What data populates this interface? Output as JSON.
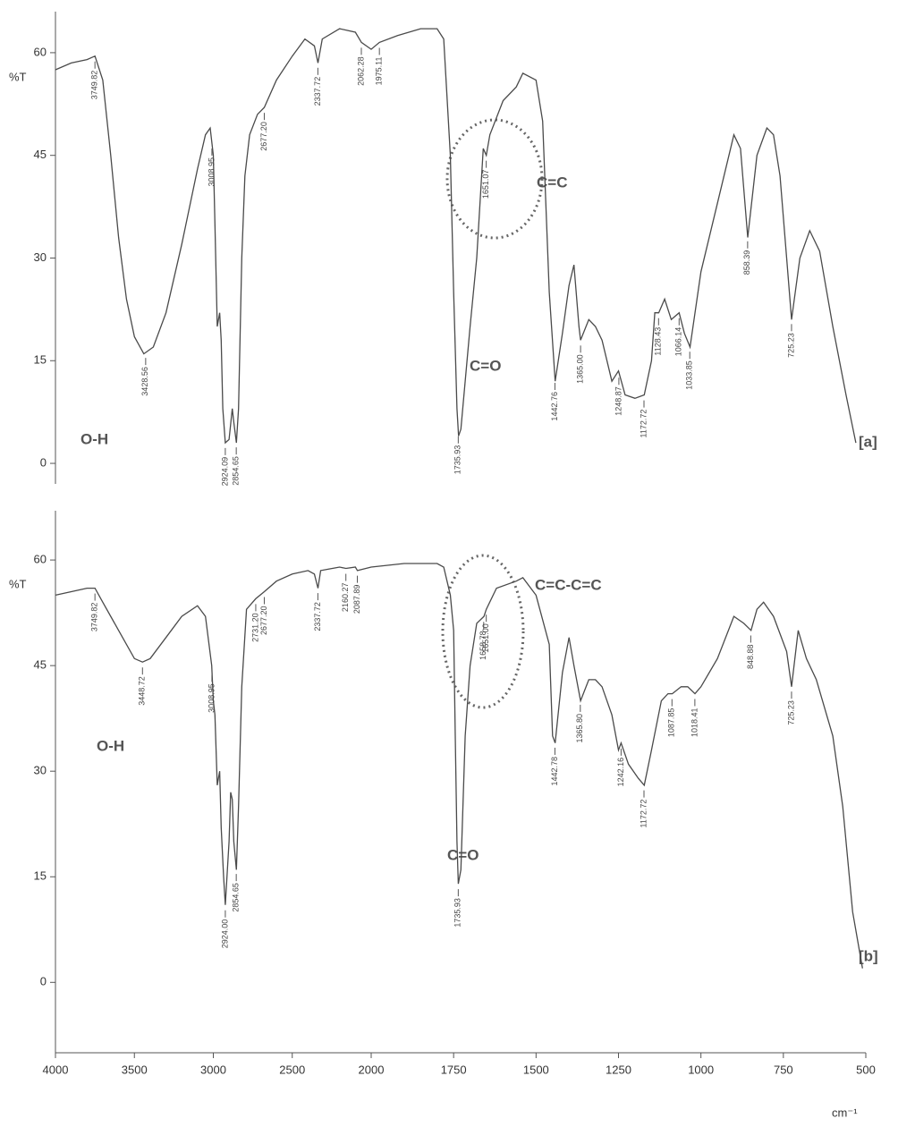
{
  "chart_data": [
    {
      "type": "line",
      "color": "#4a4a4a",
      "y_label": "%T",
      "ylim": [
        -3,
        66
      ],
      "yticks": [
        0,
        15,
        30,
        45,
        60
      ],
      "x": [
        4000,
        3900,
        3800,
        3749.82,
        3700,
        3650,
        3600,
        3550,
        3500,
        3440,
        3380,
        3300,
        3200,
        3100,
        3050,
        3020,
        3000,
        2990,
        2975,
        2960,
        2950,
        2940,
        2924,
        2900,
        2880,
        2870,
        2854,
        2840,
        2820,
        2800,
        2770,
        2720,
        2677,
        2600,
        2500,
        2420,
        2360,
        2337,
        2310,
        2200,
        2100,
        2062,
        2000,
        1975,
        1920,
        1850,
        1800,
        1780,
        1760,
        1750,
        1740,
        1735,
        1728,
        1715,
        1700,
        1680,
        1660,
        1651,
        1640,
        1600,
        1560,
        1540,
        1500,
        1480,
        1460,
        1442,
        1420,
        1400,
        1385,
        1370,
        1365,
        1340,
        1320,
        1300,
        1270,
        1250,
        1230,
        1200,
        1172,
        1150,
        1140,
        1128,
        1110,
        1090,
        1066,
        1050,
        1033,
        1000,
        950,
        900,
        880,
        858,
        830,
        800,
        780,
        760,
        740,
        725,
        700,
        670,
        640,
        600,
        560,
        530
      ],
      "values": [
        57.5,
        58.5,
        59,
        59.5,
        56,
        45,
        33,
        24,
        18.5,
        16,
        17,
        22,
        32,
        43,
        48,
        49,
        45,
        35,
        20,
        22,
        18,
        8,
        3,
        3.5,
        8,
        6,
        3,
        8,
        30,
        42,
        48,
        51,
        52,
        56,
        59.5,
        62,
        61,
        58.5,
        62,
        63.5,
        63,
        61.5,
        60.5,
        61.5,
        62.5,
        63.5,
        63.5,
        62,
        45,
        25,
        8,
        4,
        5,
        12,
        20,
        30,
        46,
        45,
        48,
        53,
        55,
        57,
        56,
        50,
        25,
        12,
        19,
        26,
        29,
        20,
        18,
        21,
        20,
        18,
        12,
        13.5,
        10,
        9.5,
        10,
        15,
        22,
        22,
        24,
        21,
        22,
        19,
        17,
        28,
        38,
        48,
        46,
        33,
        45,
        49,
        48,
        42,
        30,
        21,
        30,
        34,
        31,
        20,
        10,
        3
      ],
      "peaks": [
        {
          "x": 3749.82,
          "label": "3749.82"
        },
        {
          "x": 3428.56,
          "label": "3428.56"
        },
        {
          "x": 3008.95,
          "label": "3008.95"
        },
        {
          "x": 2924.09,
          "label": "2924.09"
        },
        {
          "x": 2854.65,
          "label": "2854.65"
        },
        {
          "x": 2677.2,
          "label": "2677.20"
        },
        {
          "x": 2337.72,
          "label": "2337.72"
        },
        {
          "x": 2062.28,
          "label": "2062.28"
        },
        {
          "x": 1975.11,
          "label": "1975.11"
        },
        {
          "x": 1735.93,
          "label": "1735.93"
        },
        {
          "x": 1651.07,
          "label": "1651.07"
        },
        {
          "x": 1442.76,
          "label": "1442.76"
        },
        {
          "x": 1365,
          "label": "1365.00"
        },
        {
          "x": 1248.87,
          "label": "1248.87"
        },
        {
          "x": 1172.72,
          "label": "1172.72"
        },
        {
          "x": 1128.43,
          "label": "1128.43"
        },
        {
          "x": 1066.14,
          "label": "1066.14"
        },
        {
          "x": 1033.85,
          "label": "1033.85"
        },
        {
          "x": 858.39,
          "label": "858.39"
        },
        {
          "x": 725.23,
          "label": "725.23"
        }
      ],
      "labels": [
        "O-H",
        "C=O",
        "C=C",
        "[a]"
      ]
    },
    {
      "type": "line",
      "color": "#4a4a4a",
      "y_label": "%T",
      "ylim": [
        -10,
        67
      ],
      "yticks": [
        0,
        15,
        30,
        45,
        60
      ],
      "xlim": [
        4000,
        500
      ],
      "xticks": [
        4000,
        3500,
        3000,
        2500,
        2000,
        1750,
        1500,
        1250,
        1000,
        750,
        500
      ],
      "x_scale_change": 2000,
      "x_label": "cm⁻¹",
      "x": [
        4000,
        3900,
        3800,
        3749.82,
        3700,
        3600,
        3500,
        3448.72,
        3400,
        3300,
        3200,
        3100,
        3050,
        3010,
        3000,
        2990,
        2975,
        2960,
        2950,
        2935,
        2924,
        2900,
        2890,
        2880,
        2870,
        2854,
        2840,
        2820,
        2790,
        2731.2,
        2677.2,
        2600,
        2500,
        2400,
        2360,
        2337,
        2320,
        2200,
        2160,
        2100,
        2087,
        2000,
        1900,
        1800,
        1780,
        1760,
        1750,
        1745,
        1740,
        1735.93,
        1728,
        1715,
        1700,
        1680,
        1658,
        1651,
        1620,
        1560,
        1540,
        1500,
        1460,
        1450,
        1442,
        1420,
        1400,
        1385,
        1365,
        1340,
        1320,
        1300,
        1270,
        1250,
        1242,
        1220,
        1190,
        1172,
        1150,
        1120,
        1100,
        1087,
        1060,
        1040,
        1018,
        1000,
        950,
        900,
        870,
        848,
        830,
        810,
        780,
        740,
        725,
        705,
        680,
        650,
        600,
        570,
        540,
        510
      ],
      "values": [
        55,
        55.5,
        56,
        56,
        54,
        50,
        46,
        45.5,
        46,
        49,
        52,
        53.5,
        52,
        45,
        40,
        38,
        28,
        30,
        22,
        15,
        11,
        20,
        27,
        26,
        20,
        16,
        25,
        42,
        53,
        54.5,
        55.5,
        57,
        58,
        58.5,
        58,
        56,
        58.5,
        59,
        58.8,
        59,
        58.5,
        59,
        59.5,
        59.5,
        59,
        55,
        50,
        35,
        20,
        14,
        16,
        35,
        45,
        51,
        52,
        53,
        56,
        57,
        57.5,
        55,
        48,
        35,
        34,
        44,
        49,
        45,
        40,
        43,
        43,
        42,
        38,
        33,
        34,
        31,
        29,
        28,
        33,
        40,
        41,
        41,
        42,
        42,
        41,
        42,
        46,
        52,
        51,
        50,
        53,
        54,
        52,
        47,
        42,
        50,
        46,
        43,
        35,
        25,
        10,
        2
      ],
      "peaks": [
        {
          "x": 3749.82,
          "label": "3749.82"
        },
        {
          "x": 3448.72,
          "label": "3448.72"
        },
        {
          "x": 3008.95,
          "label": "3008.95"
        },
        {
          "x": 2924,
          "label": "2924.00"
        },
        {
          "x": 2854.65,
          "label": "2854.65"
        },
        {
          "x": 2731.2,
          "label": "2731.20"
        },
        {
          "x": 2677.2,
          "label": "2677.20"
        },
        {
          "x": 2337.72,
          "label": "2337.72"
        },
        {
          "x": 2160.27,
          "label": "2160.27"
        },
        {
          "x": 2087.89,
          "label": "2087.89"
        },
        {
          "x": 1735.93,
          "label": "1735.93"
        },
        {
          "x": 1658.78,
          "label": "1658.78"
        },
        {
          "x": 1651,
          "label": "1651.00"
        },
        {
          "x": 1442.78,
          "label": "1442.78"
        },
        {
          "x": 1365.8,
          "label": "1365.80"
        },
        {
          "x": 1242.16,
          "label": "1242.16"
        },
        {
          "x": 1172.72,
          "label": "1172.72"
        },
        {
          "x": 1087.85,
          "label": "1087.85"
        },
        {
          "x": 1018.41,
          "label": "1018.41"
        },
        {
          "x": 848.88,
          "label": "848.88"
        },
        {
          "x": 725.23,
          "label": "725.23"
        }
      ],
      "labels": [
        "O-H",
        "C=O",
        "C=C-C=C",
        "[b]"
      ]
    }
  ]
}
